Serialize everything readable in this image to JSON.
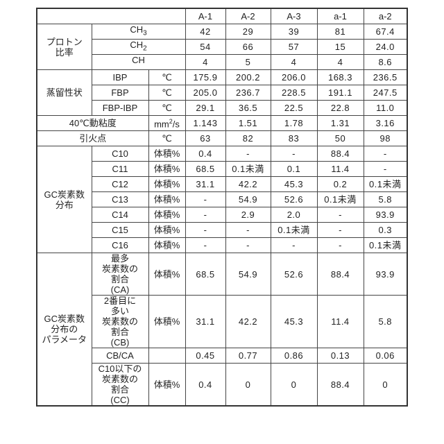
{
  "columns": [
    "A-1",
    "A-2",
    "A-3",
    "a-1",
    "a-2"
  ],
  "proton": {
    "group": "プロトン\n比率",
    "rows": [
      {
        "label": "CH",
        "sub": "3",
        "values": [
          "42",
          "29",
          "39",
          "81",
          "67.4"
        ]
      },
      {
        "label": "CH",
        "sub": "2",
        "values": [
          "54",
          "66",
          "57",
          "15",
          "24.0"
        ]
      },
      {
        "label": "CH",
        "sub": "",
        "values": [
          "4",
          "5",
          "4",
          "4",
          "8.6"
        ]
      }
    ]
  },
  "distillation": {
    "group": "蒸留性状",
    "rows": [
      {
        "label": "IBP",
        "unit": "℃",
        "values": [
          "175.9",
          "200.2",
          "206.0",
          "168.3",
          "236.5"
        ]
      },
      {
        "label": "FBP",
        "unit": "℃",
        "values": [
          "205.0",
          "236.7",
          "228.5",
          "191.1",
          "247.5"
        ]
      },
      {
        "label": "FBP-IBP",
        "unit": "℃",
        "values": [
          "29.1",
          "36.5",
          "22.5",
          "22.8",
          "11.0"
        ]
      }
    ]
  },
  "viscosity": {
    "label": "40℃動粘度",
    "unit_base": "mm",
    "unit_sup": "2",
    "unit_tail": "/s",
    "values": [
      "1.143",
      "1.51",
      "1.78",
      "1.31",
      "3.16"
    ]
  },
  "flash": {
    "label": "引火点",
    "unit": "℃",
    "values": [
      "63",
      "82",
      "83",
      "50",
      "98"
    ]
  },
  "gc": {
    "group": "GC炭素数\n分布",
    "rows": [
      {
        "label": "C10",
        "unit": "体積%",
        "values": [
          "0.4",
          "-",
          "-",
          "88.4",
          "-"
        ]
      },
      {
        "label": "C11",
        "unit": "体積%",
        "values": [
          "68.5",
          "0.1未満",
          "0.1",
          "11.4",
          "-"
        ]
      },
      {
        "label": "C12",
        "unit": "体積%",
        "values": [
          "31.1",
          "42.2",
          "45.3",
          "0.2",
          "0.1未満"
        ]
      },
      {
        "label": "C13",
        "unit": "体積%",
        "values": [
          "-",
          "54.9",
          "52.6",
          "0.1未満",
          "5.8"
        ]
      },
      {
        "label": "C14",
        "unit": "体積%",
        "values": [
          "-",
          "2.9",
          "2.0",
          "-",
          "93.9"
        ]
      },
      {
        "label": "C15",
        "unit": "体積%",
        "values": [
          "-",
          "-",
          "0.1未満",
          "-",
          "0.3"
        ]
      },
      {
        "label": "C16",
        "unit": "体積%",
        "values": [
          "-",
          "-",
          "-",
          "-",
          "0.1未満"
        ]
      }
    ]
  },
  "params": {
    "group": "GC炭素数\n分布の\nパラメータ",
    "rows": [
      {
        "label": "最多\n炭素数の\n割合\n(CA)",
        "unit": "体積%",
        "values": [
          "68.5",
          "54.9",
          "52.6",
          "88.4",
          "93.9"
        ]
      },
      {
        "label": "2番目に\n多い\n炭素数の\n割合\n(CB)",
        "unit": "体積%",
        "values": [
          "31.1",
          "42.2",
          "45.3",
          "11.4",
          "5.8"
        ]
      },
      {
        "label": "CB/CA",
        "unit": "",
        "values": [
          "0.45",
          "0.77",
          "0.86",
          "0.13",
          "0.06"
        ]
      },
      {
        "label": "C10以下の\n炭素数の\n割合\n(CC)",
        "unit": "体積%",
        "values": [
          "0.4",
          "0",
          "0",
          "88.4",
          "0"
        ]
      }
    ]
  }
}
